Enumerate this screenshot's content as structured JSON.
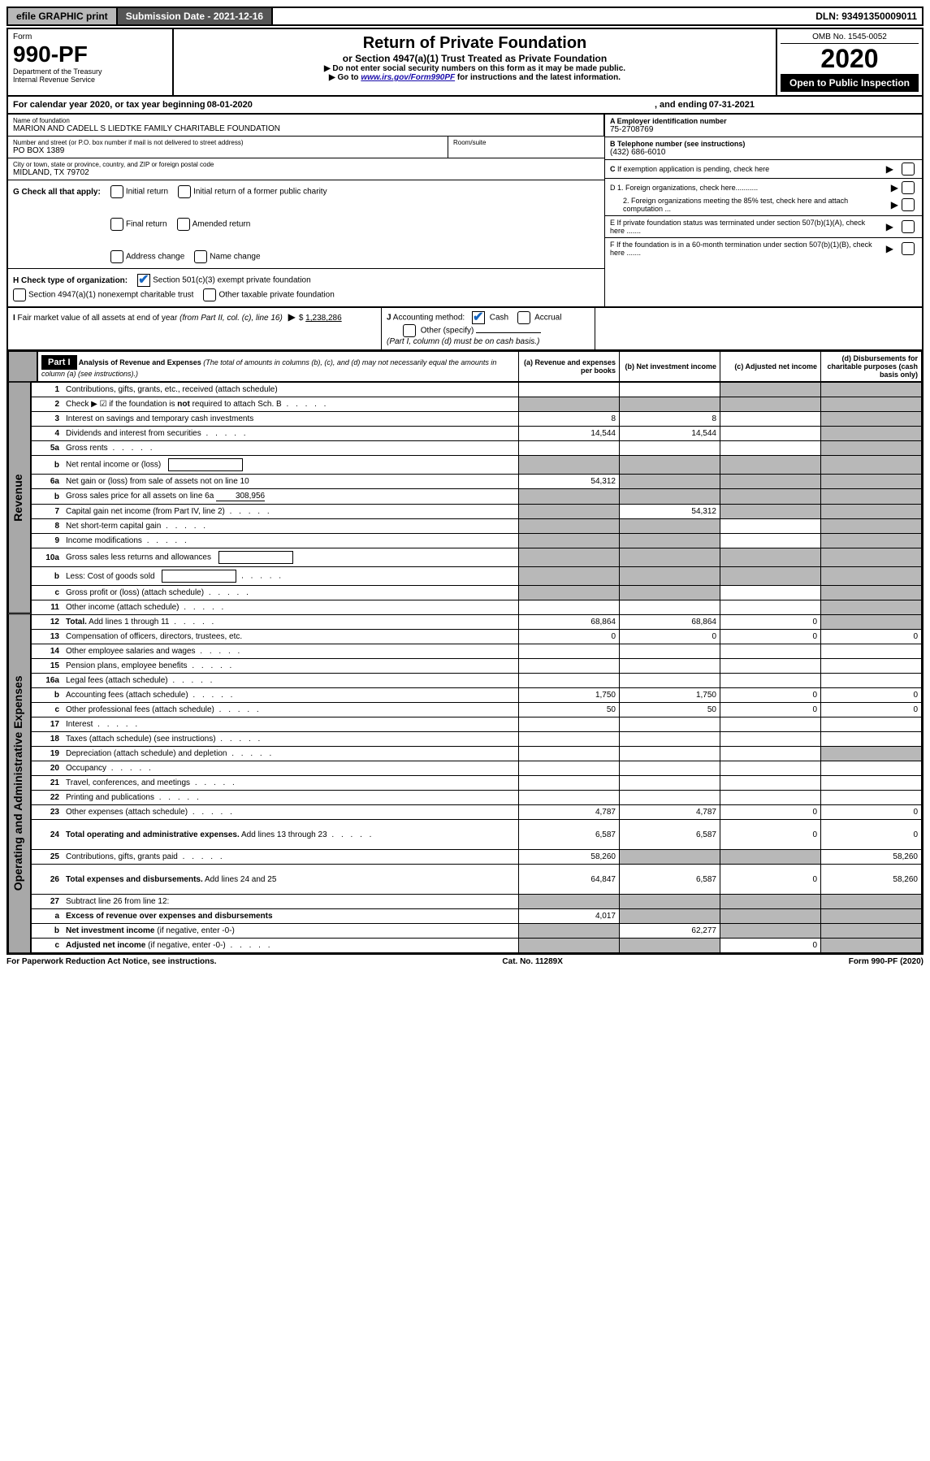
{
  "top_bar": {
    "efile": "efile GRAPHIC print",
    "submission": "Submission Date - 2021-12-16",
    "dln": "DLN: 93491350009011"
  },
  "header": {
    "form_word": "Form",
    "form_number": "990-PF",
    "dept1": "Department of the Treasury",
    "dept2": "Internal Revenue Service",
    "title": "Return of Private Foundation",
    "subtitle": "or Section 4947(a)(1) Trust Treated as Private Foundation",
    "instr1": "▶ Do not enter social security numbers on this form as it may be made public.",
    "instr2": "▶ Go to www.irs.gov/Form990PF for instructions and the latest information.",
    "omb": "OMB No. 1545-0052",
    "year": "2020",
    "open": "Open to Public Inspection"
  },
  "calendar": {
    "prefix": "For calendar year 2020, or tax year beginning ",
    "begin": "08-01-2020",
    "mid": ", and ending ",
    "end": "07-31-2021"
  },
  "entity": {
    "name_label": "Name of foundation",
    "name": "MARION AND CADELL S LIEDTKE FAMILY CHARITABLE FOUNDATION",
    "addr_label": "Number and street (or P.O. box number if mail is not delivered to street address)",
    "addr": "PO BOX 1389",
    "room_label": "Room/suite",
    "city_label": "City or town, state or province, country, and ZIP or foreign postal code",
    "city": "MIDLAND, TX  79702",
    "ein_label": "A Employer identification number",
    "ein": "75-2708769",
    "phone_label": "B Telephone number (see instructions)",
    "phone": "(432) 686-6010",
    "c_label": "C If exemption application is pending, check here",
    "d1": "D 1. Foreign organizations, check here...........",
    "d2": "2. Foreign organizations meeting the 85% test, check here and attach computation ...",
    "e": "E If private foundation status was terminated under section 507(b)(1)(A), check here .......",
    "f": "F If the foundation is in a 60-month termination under section 507(b)(1)(B), check here .......",
    "g": "G Check all that apply:",
    "g_opts": [
      "Initial return",
      "Initial return of a former public charity",
      "Final return",
      "Amended return",
      "Address change",
      "Name change"
    ],
    "h": "H Check type of organization:",
    "h1": "Section 501(c)(3) exempt private foundation",
    "h2": "Section 4947(a)(1) nonexempt charitable trust",
    "h3": "Other taxable private foundation",
    "i": "I Fair market value of all assets at end of year (from Part II, col. (c), line 16)",
    "i_val": "1,238,286",
    "j": "J Accounting method:",
    "j_cash": "Cash",
    "j_accrual": "Accrual",
    "j_other": "Other (specify)",
    "j_note": "(Part I, column (d) must be on cash basis.)"
  },
  "part1": {
    "label": "Part I",
    "title": "Analysis of Revenue and Expenses",
    "title_note": "(The total of amounts in columns (b), (c), and (d) may not necessarily equal the amounts in column (a) (see instructions).)",
    "col_a": "(a) Revenue and expenses per books",
    "col_b": "(b) Net investment income",
    "col_c": "(c) Adjusted net income",
    "col_d": "(d) Disbursements for charitable purposes (cash basis only)",
    "side_revenue": "Revenue",
    "side_expenses": "Operating and Administrative Expenses"
  },
  "rows": [
    {
      "n": "1",
      "t": "Contributions, gifts, grants, etc., received (attach schedule)",
      "a": "",
      "b": "",
      "c": "grey",
      "d": "grey"
    },
    {
      "n": "2",
      "t": "Check ▶ ☑ if the foundation is <b>not</b> required to attach Sch. B",
      "a": "grey",
      "b": "grey",
      "c": "grey",
      "d": "grey",
      "dots": true
    },
    {
      "n": "3",
      "t": "Interest on savings and temporary cash investments",
      "a": "8",
      "b": "8",
      "c": "",
      "d": "grey"
    },
    {
      "n": "4",
      "t": "Dividends and interest from securities",
      "a": "14,544",
      "b": "14,544",
      "c": "",
      "d": "grey",
      "dots": true
    },
    {
      "n": "5a",
      "t": "Gross rents",
      "a": "",
      "b": "",
      "c": "",
      "d": "grey",
      "dots": true
    },
    {
      "n": "b",
      "t": "Net rental income or (loss)",
      "a": "grey",
      "b": "grey",
      "c": "grey",
      "d": "grey",
      "inline_box": true
    },
    {
      "n": "6a",
      "t": "Net gain or (loss) from sale of assets not on line 10",
      "a": "54,312",
      "b": "grey",
      "c": "grey",
      "d": "grey"
    },
    {
      "n": "b",
      "t": "Gross sales price for all assets on line 6a",
      "a": "grey",
      "b": "grey",
      "c": "grey",
      "d": "grey",
      "inline_val": "308,956"
    },
    {
      "n": "7",
      "t": "Capital gain net income (from Part IV, line 2)",
      "a": "grey",
      "b": "54,312",
      "c": "grey",
      "d": "grey",
      "dots": true
    },
    {
      "n": "8",
      "t": "Net short-term capital gain",
      "a": "grey",
      "b": "grey",
      "c": "",
      "d": "grey",
      "dots": true
    },
    {
      "n": "9",
      "t": "Income modifications",
      "a": "grey",
      "b": "grey",
      "c": "",
      "d": "grey",
      "dots": true
    },
    {
      "n": "10a",
      "t": "Gross sales less returns and allowances",
      "a": "grey",
      "b": "grey",
      "c": "grey",
      "d": "grey",
      "inline_box": true
    },
    {
      "n": "b",
      "t": "Less: Cost of goods sold",
      "a": "grey",
      "b": "grey",
      "c": "grey",
      "d": "grey",
      "inline_box": true,
      "dots": true
    },
    {
      "n": "c",
      "t": "Gross profit or (loss) (attach schedule)",
      "a": "grey",
      "b": "grey",
      "c": "",
      "d": "grey",
      "dots": true
    },
    {
      "n": "11",
      "t": "Other income (attach schedule)",
      "a": "",
      "b": "",
      "c": "",
      "d": "grey",
      "dots": true
    },
    {
      "n": "12",
      "t": "<b>Total.</b> Add lines 1 through 11",
      "a": "68,864",
      "b": "68,864",
      "c": "0",
      "d": "grey",
      "dots": true
    },
    {
      "n": "13",
      "t": "Compensation of officers, directors, trustees, etc.",
      "a": "0",
      "b": "0",
      "c": "0",
      "d": "0"
    },
    {
      "n": "14",
      "t": "Other employee salaries and wages",
      "a": "",
      "b": "",
      "c": "",
      "d": "",
      "dots": true
    },
    {
      "n": "15",
      "t": "Pension plans, employee benefits",
      "a": "",
      "b": "",
      "c": "",
      "d": "",
      "dots": true
    },
    {
      "n": "16a",
      "t": "Legal fees (attach schedule)",
      "a": "",
      "b": "",
      "c": "",
      "d": "",
      "dots": true
    },
    {
      "n": "b",
      "t": "Accounting fees (attach schedule)",
      "a": "1,750",
      "b": "1,750",
      "c": "0",
      "d": "0",
      "dots": true
    },
    {
      "n": "c",
      "t": "Other professional fees (attach schedule)",
      "a": "50",
      "b": "50",
      "c": "0",
      "d": "0",
      "dots": true
    },
    {
      "n": "17",
      "t": "Interest",
      "a": "",
      "b": "",
      "c": "",
      "d": "",
      "dots": true
    },
    {
      "n": "18",
      "t": "Taxes (attach schedule) (see instructions)",
      "a": "",
      "b": "",
      "c": "",
      "d": "",
      "dots": true
    },
    {
      "n": "19",
      "t": "Depreciation (attach schedule) and depletion",
      "a": "",
      "b": "",
      "c": "",
      "d": "grey",
      "dots": true
    },
    {
      "n": "20",
      "t": "Occupancy",
      "a": "",
      "b": "",
      "c": "",
      "d": "",
      "dots": true
    },
    {
      "n": "21",
      "t": "Travel, conferences, and meetings",
      "a": "",
      "b": "",
      "c": "",
      "d": "",
      "dots": true
    },
    {
      "n": "22",
      "t": "Printing and publications",
      "a": "",
      "b": "",
      "c": "",
      "d": "",
      "dots": true
    },
    {
      "n": "23",
      "t": "Other expenses (attach schedule)",
      "a": "4,787",
      "b": "4,787",
      "c": "0",
      "d": "0",
      "dots": true
    },
    {
      "n": "24",
      "t": "<b>Total operating and administrative expenses.</b> Add lines 13 through 23",
      "a": "6,587",
      "b": "6,587",
      "c": "0",
      "d": "0",
      "dots": true,
      "tall": true
    },
    {
      "n": "25",
      "t": "Contributions, gifts, grants paid",
      "a": "58,260",
      "b": "grey",
      "c": "grey",
      "d": "58,260",
      "dots": true
    },
    {
      "n": "26",
      "t": "<b>Total expenses and disbursements.</b> Add lines 24 and 25",
      "a": "64,847",
      "b": "6,587",
      "c": "0",
      "d": "58,260",
      "tall": true
    },
    {
      "n": "27",
      "t": "Subtract line 26 from line 12:",
      "a": "grey",
      "b": "grey",
      "c": "grey",
      "d": "grey"
    },
    {
      "n": "a",
      "t": "<b>Excess of revenue over expenses and disbursements</b>",
      "a": "4,017",
      "b": "grey",
      "c": "grey",
      "d": "grey"
    },
    {
      "n": "b",
      "t": "<b>Net investment income</b> (if negative, enter -0-)",
      "a": "grey",
      "b": "62,277",
      "c": "grey",
      "d": "grey"
    },
    {
      "n": "c",
      "t": "<b>Adjusted net income</b> (if negative, enter -0-)",
      "a": "grey",
      "b": "grey",
      "c": "0",
      "d": "grey",
      "dots": true
    }
  ],
  "footer": {
    "left": "For Paperwork Reduction Act Notice, see instructions.",
    "mid": "Cat. No. 11289X",
    "right": "Form 990-PF (2020)"
  }
}
